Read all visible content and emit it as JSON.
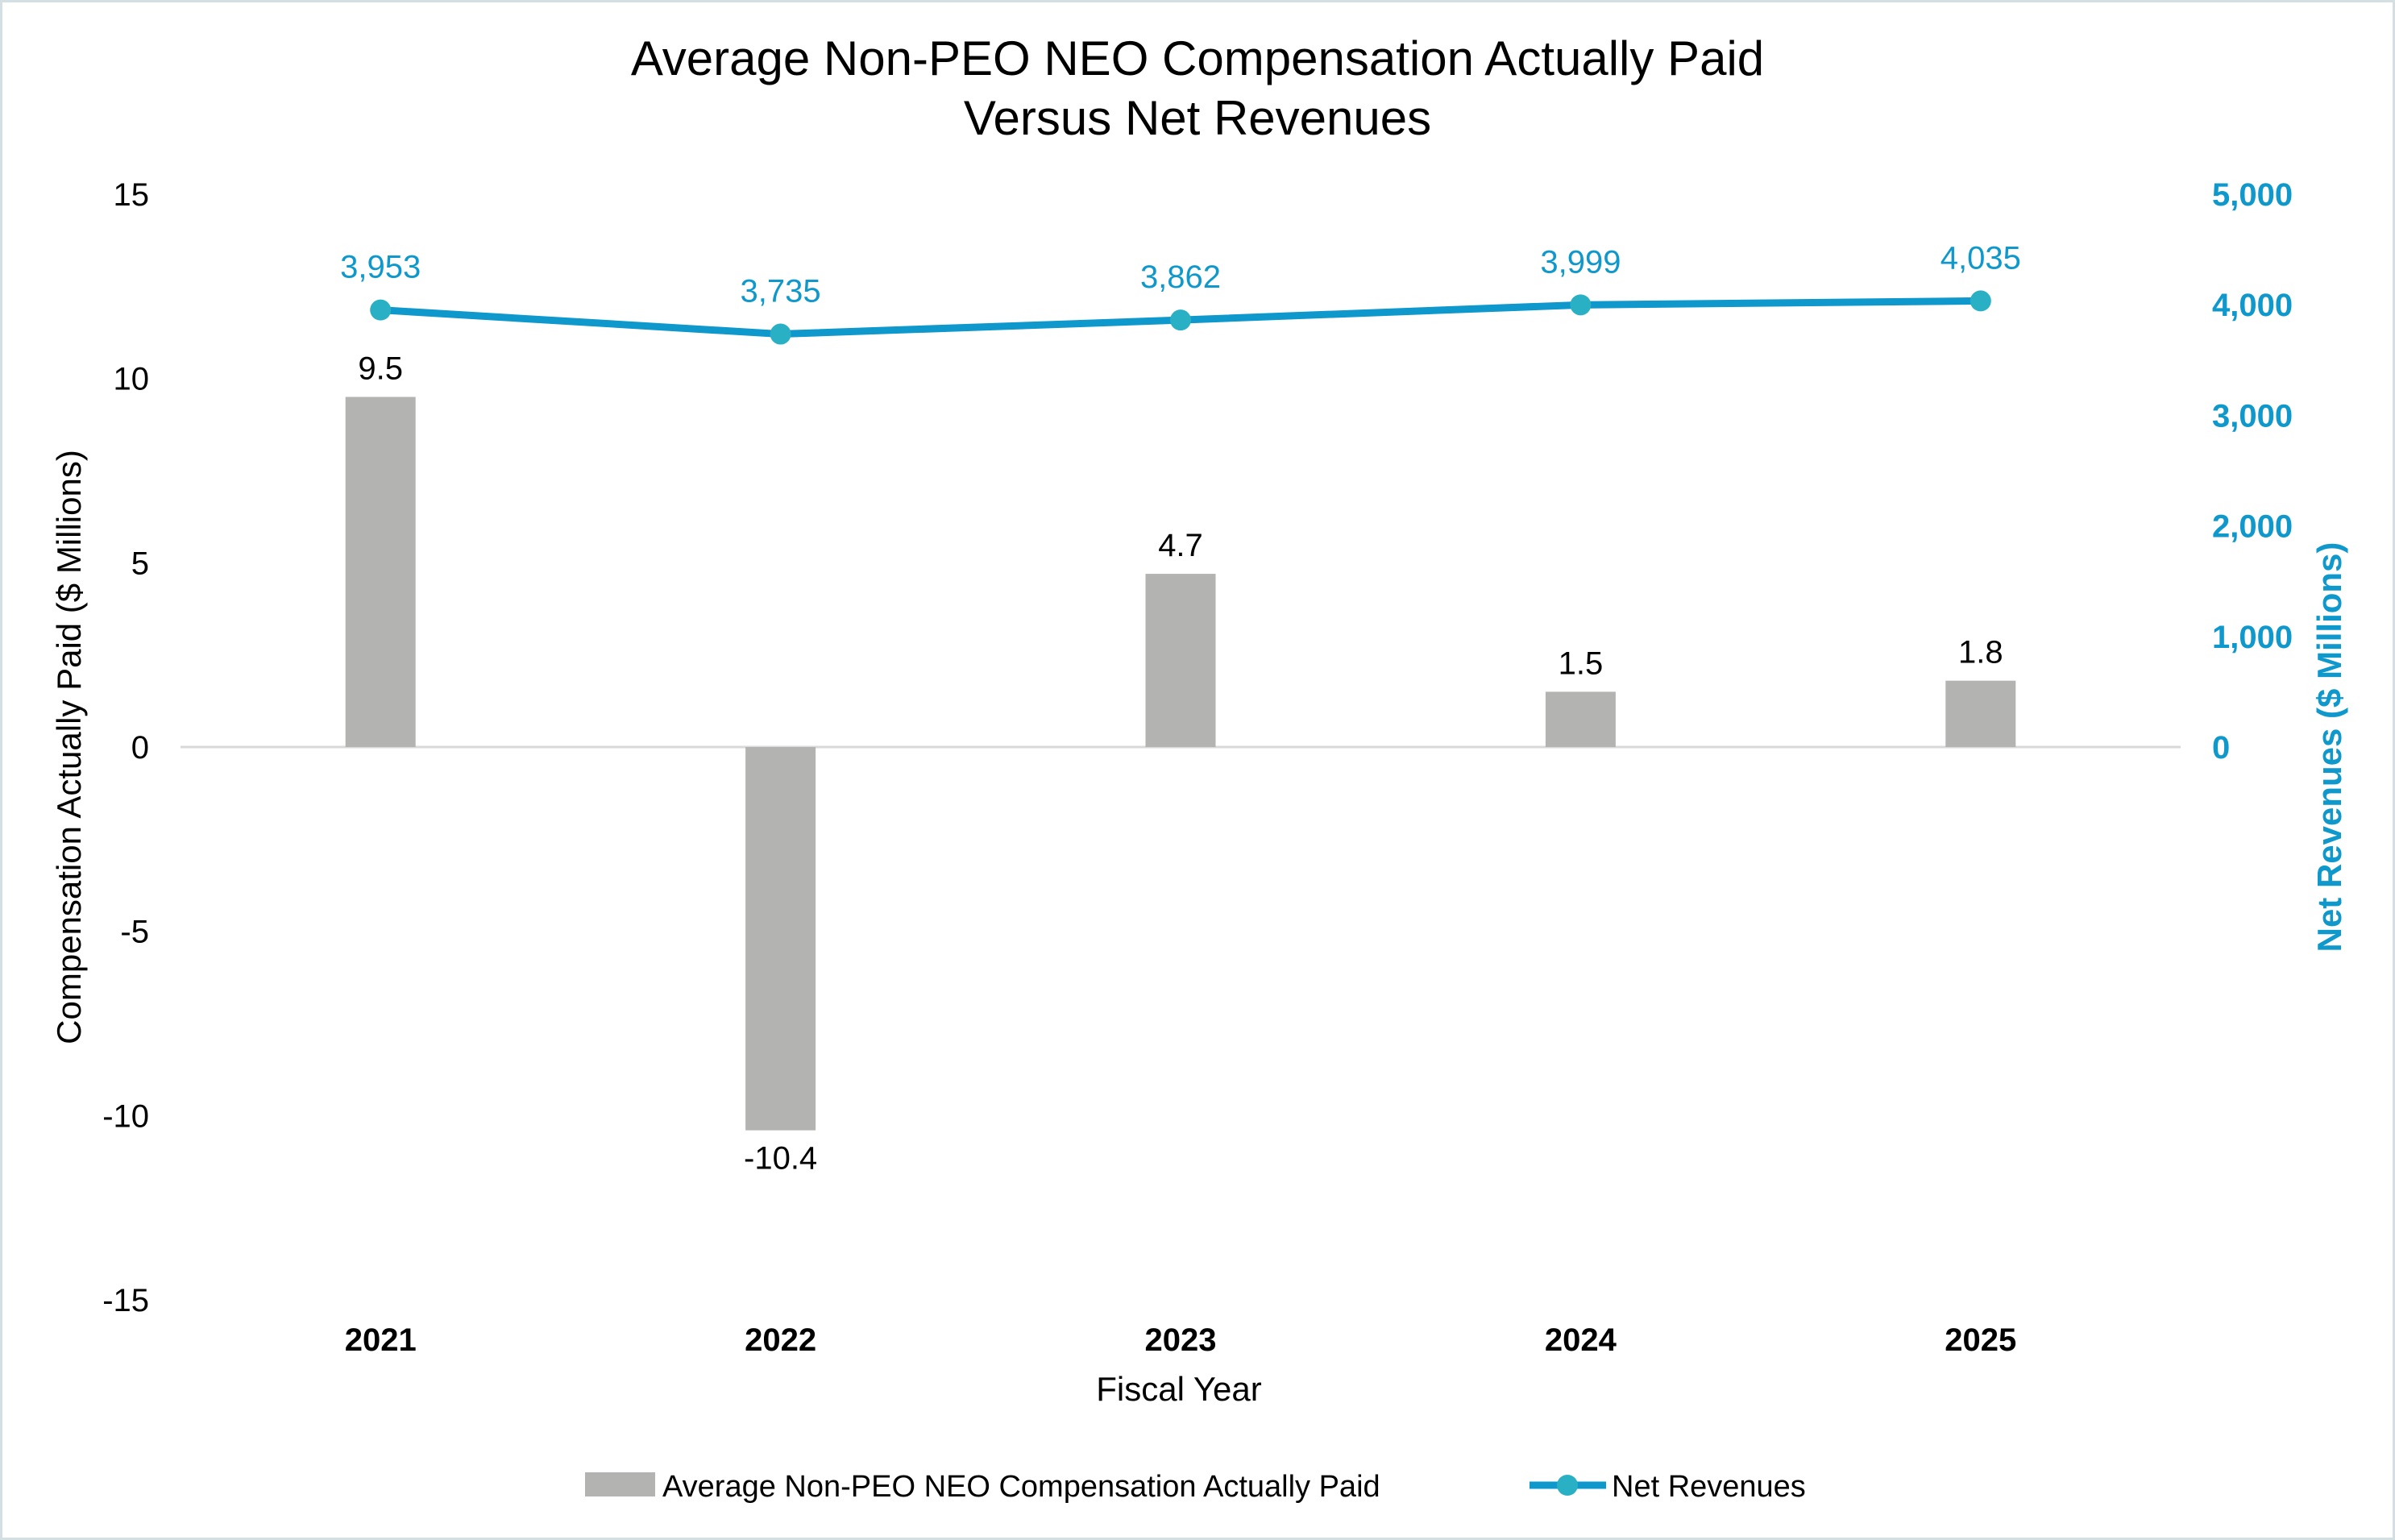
{
  "chart_data": {
    "type": "bar+line",
    "title": [
      "Average Non-PEO NEO Compensation Actually Paid",
      "Versus Net Revenues"
    ],
    "xlabel": "Fiscal Year",
    "ylabel_left": "Compensation Actually Paid ($ Millions)",
    "ylabel_right": "Net Revenues ($ Millions)",
    "categories": [
      "2021",
      "2022",
      "2023",
      "2024",
      "2025"
    ],
    "ylim_left": [
      -15,
      15
    ],
    "yticks_left": [
      "15",
      "10",
      "5",
      "0",
      "-5",
      "-10",
      "-15"
    ],
    "ylim_right": [
      0,
      5000
    ],
    "yticks_right": [
      "5,000",
      "4,000",
      "3,000",
      "2,000",
      "1,000",
      "0"
    ],
    "grid": false,
    "legend_position": "bottom",
    "series": [
      {
        "name": "Average Non-PEO NEO Compensation Actually Paid",
        "type": "bar",
        "axis": "left",
        "values": [
          9.5,
          -10.4,
          4.7,
          1.5,
          1.8
        ],
        "labels": [
          "9.5",
          "-10.4",
          "4.7",
          "1.5",
          "1.8"
        ],
        "color": "#b3b4b2"
      },
      {
        "name": "Net Revenues",
        "type": "line",
        "axis": "right",
        "values": [
          3953,
          3735,
          3862,
          3999,
          4035
        ],
        "labels": [
          "3,953",
          "3,735",
          "3,862",
          "3,999",
          "4,035"
        ],
        "color": "#0e98cc",
        "marker_color": "#2ab0c4"
      }
    ]
  }
}
